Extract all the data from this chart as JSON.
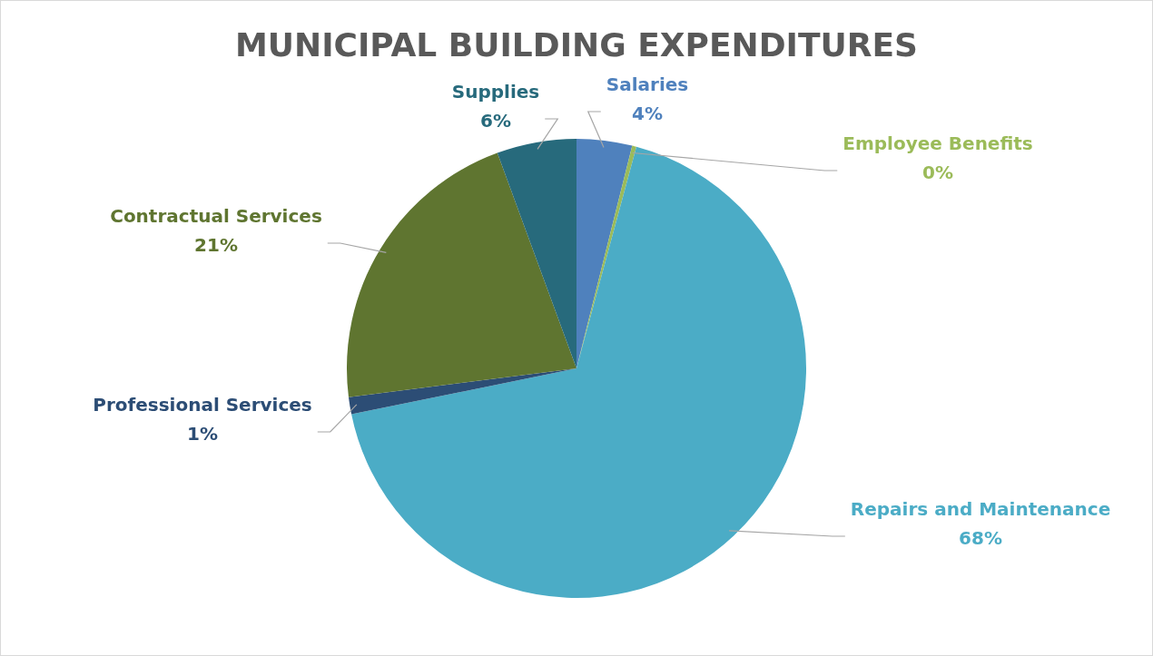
{
  "chart_data": {
    "type": "pie",
    "title": "MUNICIPAL BUILDING EXPENDITURES",
    "categories": [
      "Salaries",
      "Employee Benefits",
      "Repairs and Maintenance",
      "Professional Services",
      "Contractual Services",
      "Supplies"
    ],
    "values": [
      3.9,
      0.3,
      67.6,
      1.2,
      21.4,
      5.6
    ],
    "value_labels": [
      "4%",
      "0%",
      "68%",
      "1%",
      "21%",
      "6%"
    ],
    "colors": [
      "#4f81bd",
      "#9bbb59",
      "#4bacc6",
      "#2c4d75",
      "#5f7530",
      "#276a7c"
    ],
    "legend": false
  }
}
